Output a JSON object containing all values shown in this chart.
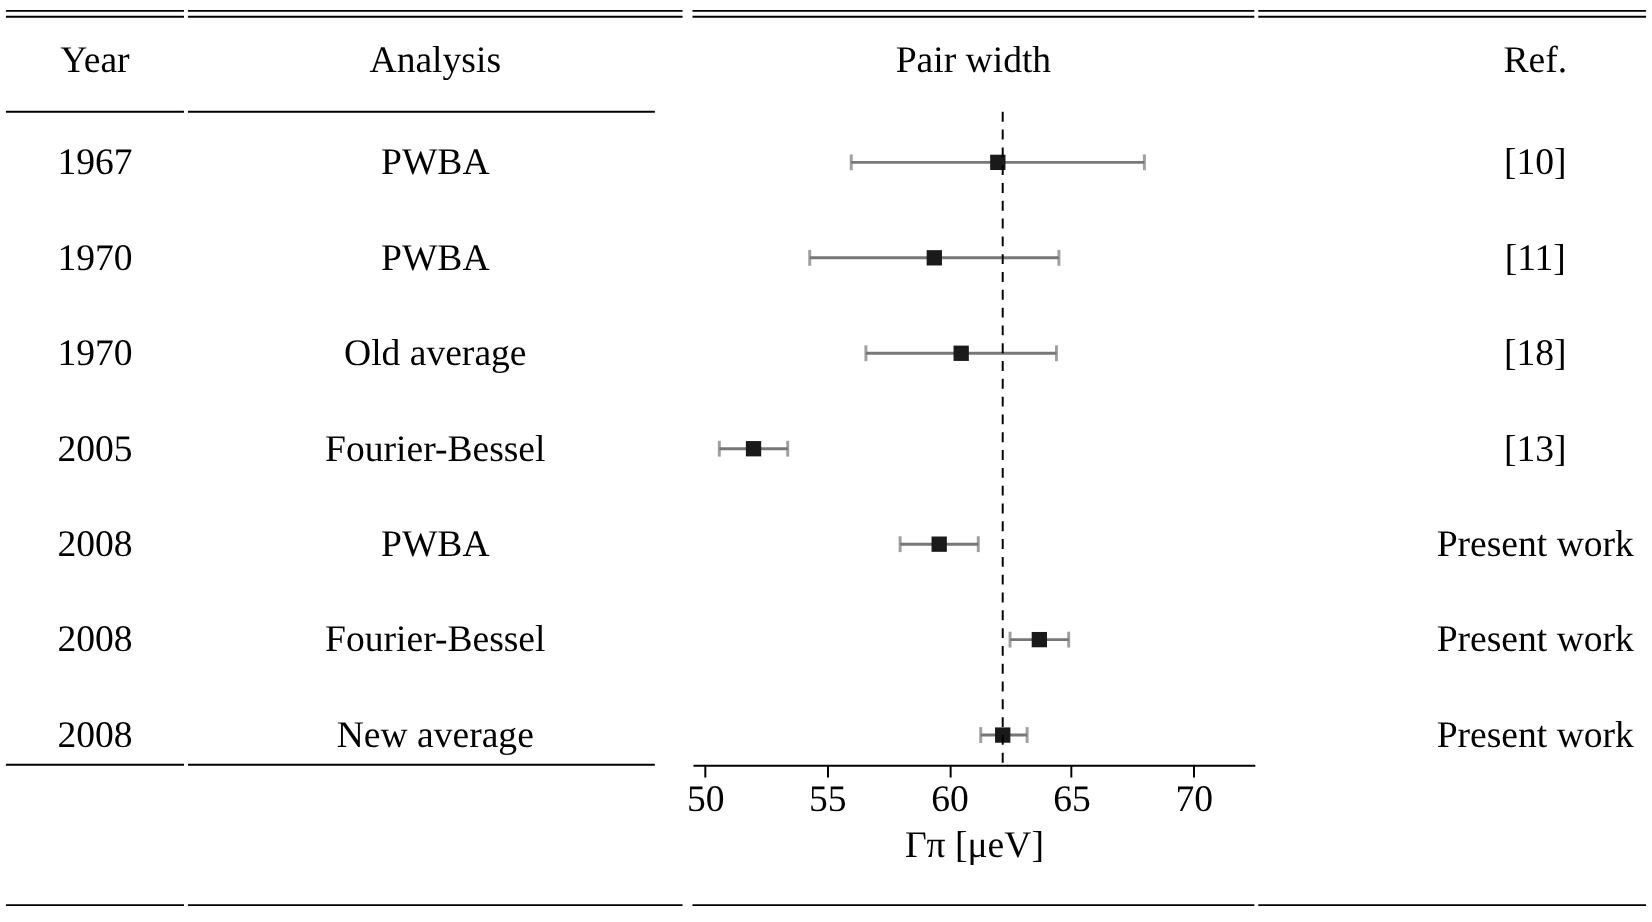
{
  "chart_data": {
    "type": "scatter",
    "orientation": "horizontal",
    "title": "Pair width",
    "xlabel": "Γπ [μeV]",
    "ylabel": "Analysis",
    "categories": [
      "PWBA",
      "PWBA",
      "Old average",
      "Fourier-Bessel",
      "PWBA",
      "Fourier-Bessel",
      "New average"
    ],
    "series": [
      {
        "color": "#1a1a1a",
        "values": [
          62.0,
          59.4,
          60.5,
          52.0,
          59.6,
          63.7,
          62.2
        ],
        "errors": [
          [
            56.0,
            68.0
          ],
          [
            54.3,
            64.5
          ],
          [
            56.6,
            64.4
          ],
          [
            50.6,
            53.4
          ],
          [
            58.0,
            61.2
          ],
          [
            62.5,
            64.9
          ],
          [
            61.3,
            63.2
          ]
        ]
      }
    ],
    "annotations": [
      "Year",
      "1967",
      "1970",
      "1970",
      "2005",
      "2008",
      "2008",
      "2008",
      "Ref.",
      "[10]",
      "[11]",
      "[18]",
      "[13]",
      "Present work",
      "Present work",
      "Present work"
    ],
    "ref_lines": [
      {
        "axis": "x",
        "value": 62.2,
        "line_style": "dashed",
        "color": "#000000"
      }
    ],
    "xlim": [
      49.5,
      72.5
    ],
    "xticks": [
      50,
      55,
      60,
      65,
      70
    ],
    "grid": false,
    "marker": "square"
  }
}
